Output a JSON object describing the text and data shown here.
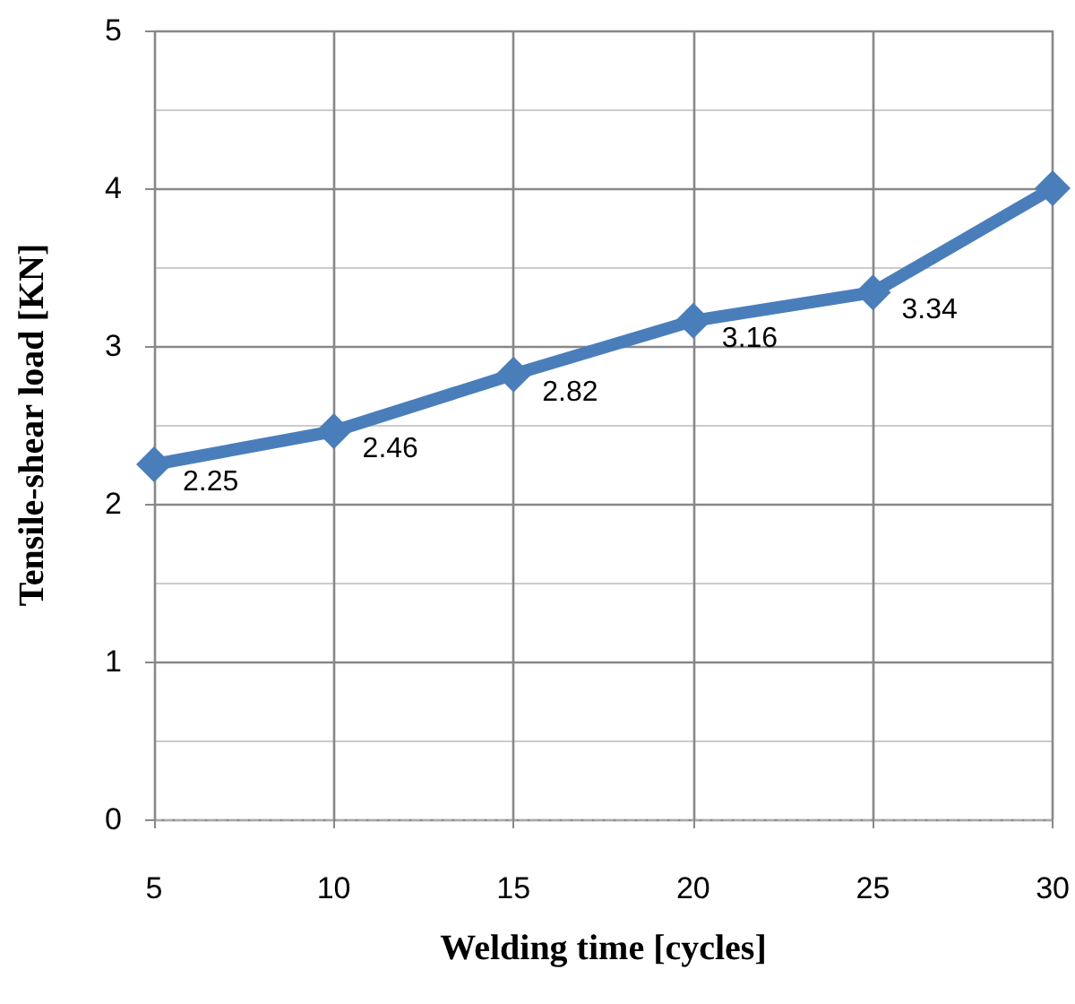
{
  "chart_data": {
    "type": "line",
    "xlabel": "Welding time [cycles]",
    "ylabel": "Tensile-shear load [KN]",
    "x": [
      5,
      10,
      15,
      20,
      25,
      30
    ],
    "series": [
      {
        "color": "#4a7ebb",
        "values": [
          2.25,
          2.46,
          2.82,
          3.16,
          3.34,
          4.0
        ],
        "value_labels": [
          "2.25",
          "2.46",
          "2.82",
          "3.16",
          "3.34",
          null
        ]
      }
    ],
    "xlim": [
      5,
      30
    ],
    "xticks": [
      5,
      10,
      15,
      20,
      25,
      30
    ],
    "ylim": [
      0,
      5
    ],
    "yticks": [
      0,
      1,
      2,
      3,
      4,
      5
    ],
    "grid": true,
    "marker": "diamond",
    "line_style": "solid"
  }
}
